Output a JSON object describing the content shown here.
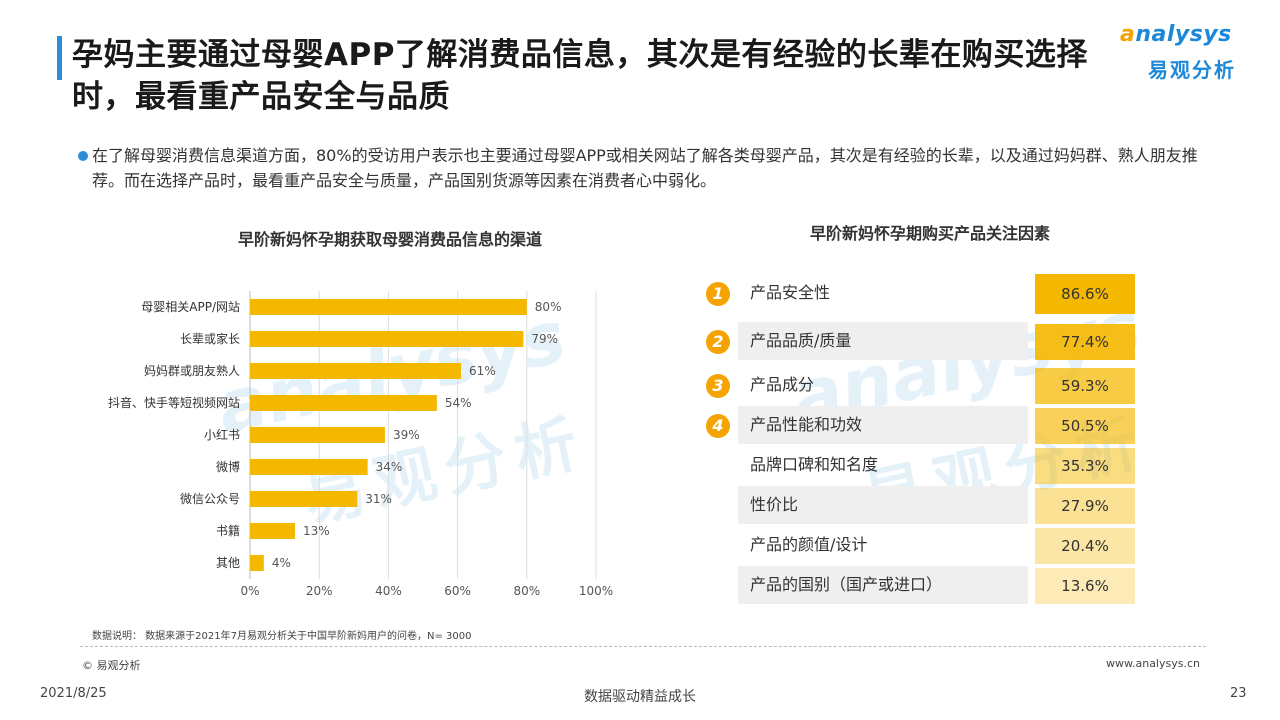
{
  "title": "孕妈主要通过母婴APP了解消费品信息，其次是有经验的长辈在购买选择时，最看重产品安全与品质",
  "logo": {
    "en_prefix": "a",
    "en_rest": "nalysys",
    "cn": "易观分析"
  },
  "summary": "在了解母婴消费信息渠道方面，80%的受访用户表示也主要通过母婴APP或相关网站了解各类母婴产品，其次是有经验的长辈，以及通过妈妈群、熟人朋友推荐。而在选择产品时，最看重产品安全与质量，产品国别货源等因素在消费者心中弱化。",
  "watermark": {
    "en": "analysys",
    "cn": "易观分析"
  },
  "chart_data": [
    {
      "type": "bar",
      "orientation": "horizontal",
      "title": "早阶新妈怀孕期获取母婴消费品信息的渠道",
      "categories": [
        "母婴相关APP/网站",
        "长辈或家长",
        "妈妈群或朋友熟人",
        "抖音、快手等短视频网站",
        "小红书",
        "微博",
        "微信公众号",
        "书籍",
        "其他"
      ],
      "values": [
        80,
        79,
        61,
        54,
        39,
        34,
        31,
        13,
        4
      ],
      "value_labels": [
        "80%",
        "79%",
        "61%",
        "54%",
        "39%",
        "34%",
        "31%",
        "13%",
        "4%"
      ],
      "xlim": [
        0,
        100
      ],
      "xticks": [
        "0%",
        "20%",
        "40%",
        "60%",
        "80%",
        "100%"
      ],
      "bar_color": "#f5b800",
      "grid": true
    },
    {
      "type": "table",
      "title": "早阶新妈怀孕期购买产品关注因素",
      "rows": [
        {
          "rank": "1",
          "label": "产品安全性",
          "value": 86.6,
          "value_label": "86.6%"
        },
        {
          "rank": "2",
          "label": "产品品质/质量",
          "value": 77.4,
          "value_label": "77.4%"
        },
        {
          "rank": "3",
          "label": "产品成分",
          "value": 59.3,
          "value_label": "59.3%"
        },
        {
          "rank": "4",
          "label": "产品性能和功效",
          "value": 50.5,
          "value_label": "50.5%"
        },
        {
          "rank": "",
          "label": "品牌口碑和知名度",
          "value": 35.3,
          "value_label": "35.3%"
        },
        {
          "rank": "",
          "label": "性价比",
          "value": 27.9,
          "value_label": "27.9%"
        },
        {
          "rank": "",
          "label": "产品的颜值/设计",
          "value": 20.4,
          "value_label": "20.4%"
        },
        {
          "rank": "",
          "label": "产品的国别（国产或进口）",
          "value": 13.6,
          "value_label": "13.6%"
        }
      ],
      "accent_color": "#f5b800"
    }
  ],
  "note": "数据说明：  数据来源于2021年7月易观分析关于中国早阶新妈用户的问卷，N= 3000",
  "copyright": "© 易观分析",
  "website": "www.analysys.cn",
  "footer": {
    "date": "2021/8/25",
    "slogan": "数据驱动精益成长",
    "page": "23"
  }
}
